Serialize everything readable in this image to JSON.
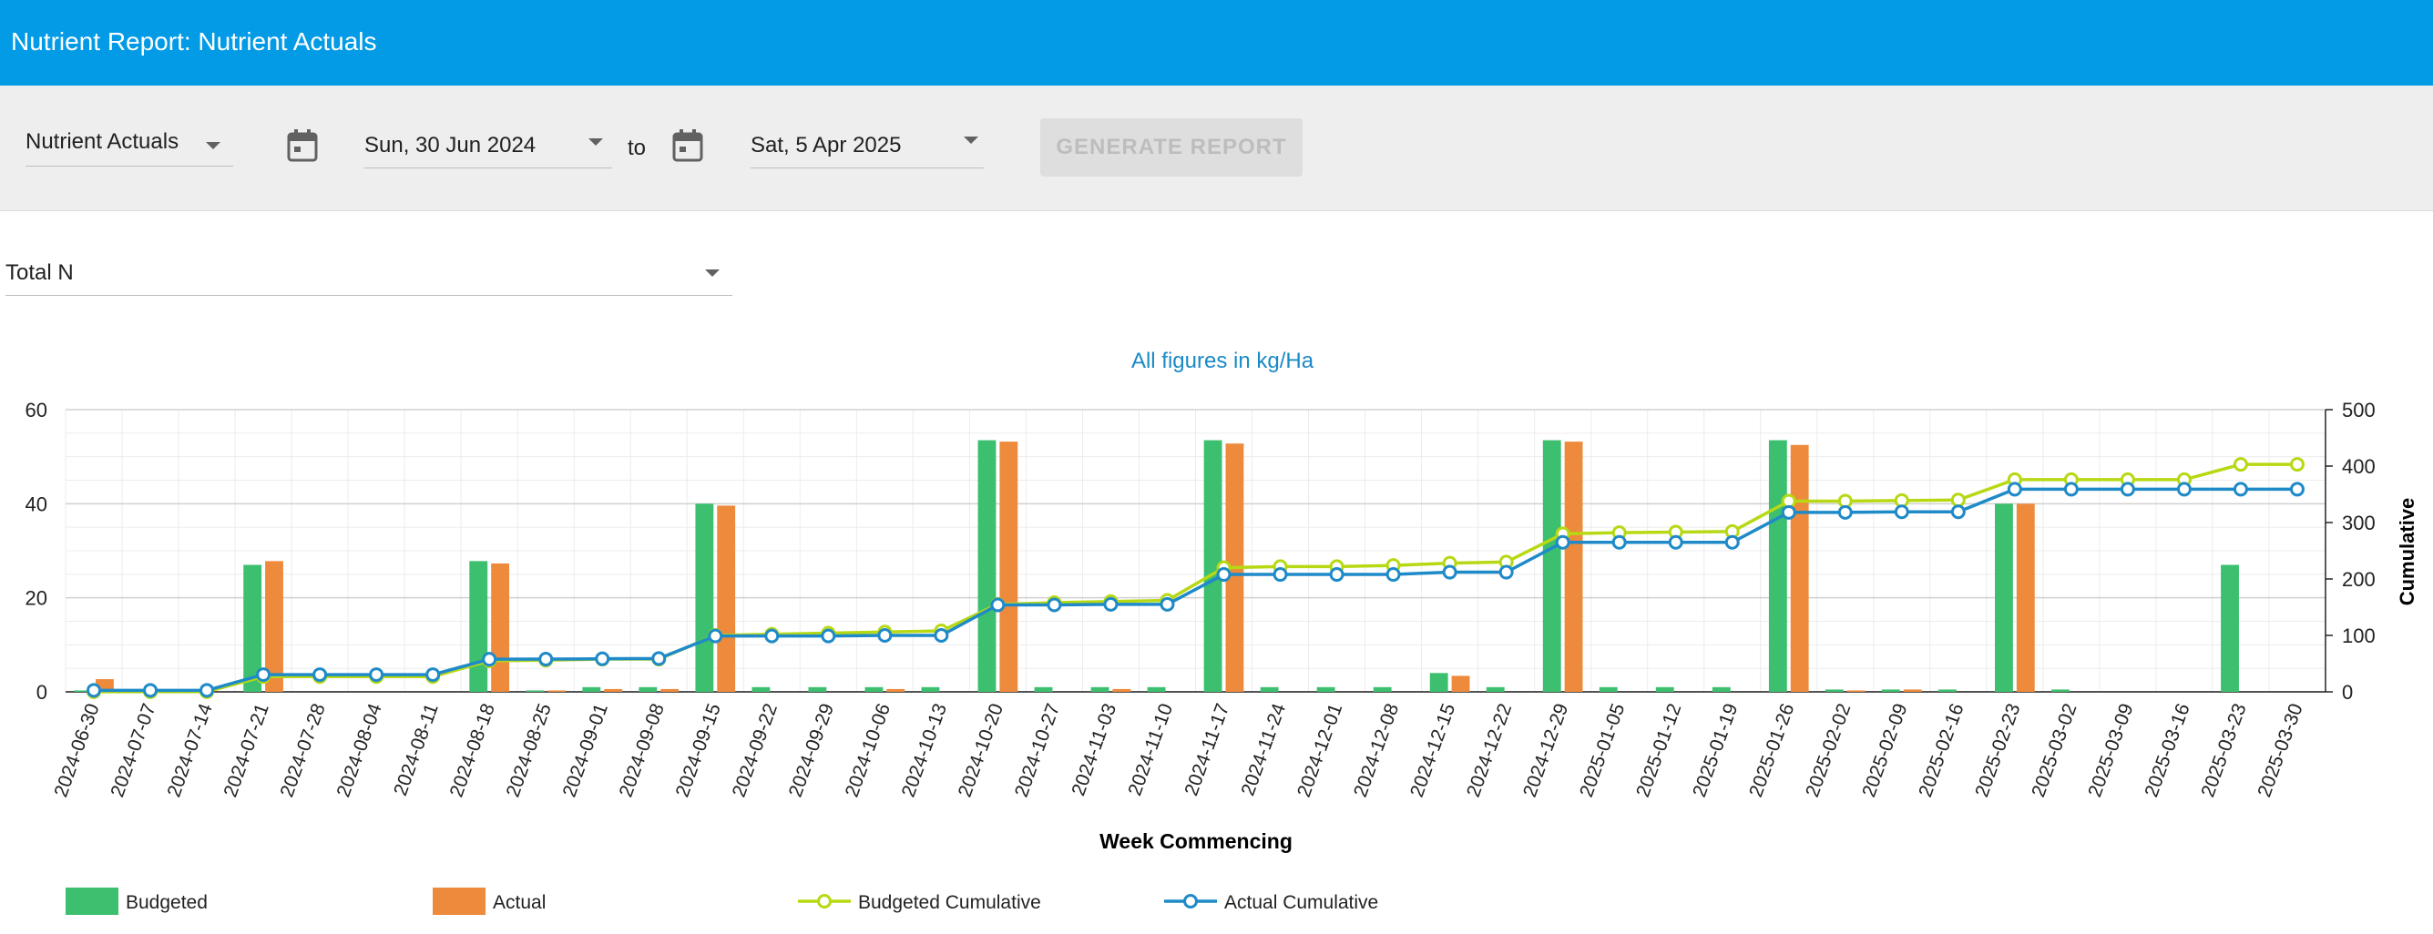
{
  "app": {
    "title": "Nutrient Report: Nutrient Actuals"
  },
  "toolbar": {
    "report_select": "Nutrient Actuals",
    "from_date": "Sun, 30 Jun 2024",
    "to_label": "to",
    "to_date": "Sat, 5 Apr 2025",
    "generate_label": "GENERATE REPORT"
  },
  "nutrient_select": {
    "value": "Total N"
  },
  "icons": {
    "calendar": "calendar-icon",
    "dropdown": "chevron-down-icon"
  },
  "colors": {
    "appbar": "#039be5",
    "budgeted": "#3cbf6e",
    "actual": "#ee8a3c",
    "budgeted_cumulative": "#b6d914",
    "actual_cumulative": "#1f8ac8",
    "note": "#1a8ac6"
  },
  "chart_data": {
    "type": "bar",
    "title": "All figures in kg/Ha",
    "xlabel": "Week Commencing",
    "ylabel": "",
    "y2label": "Cumulative",
    "ylim": [
      0,
      60
    ],
    "y_ticks": [
      0,
      20,
      40,
      60
    ],
    "y2lim": [
      0,
      500
    ],
    "y2_ticks": [
      0,
      100,
      200,
      300,
      400,
      500
    ],
    "grid": true,
    "legend_position": "bottom",
    "categories": [
      "2024-06-30",
      "2024-07-07",
      "2024-07-14",
      "2024-07-21",
      "2024-07-28",
      "2024-08-04",
      "2024-08-11",
      "2024-08-18",
      "2024-08-25",
      "2024-09-01",
      "2024-09-08",
      "2024-09-15",
      "2024-09-22",
      "2024-09-29",
      "2024-10-06",
      "2024-10-13",
      "2024-10-20",
      "2024-10-27",
      "2024-11-03",
      "2024-11-10",
      "2024-11-17",
      "2024-11-24",
      "2024-12-01",
      "2024-12-08",
      "2024-12-15",
      "2024-12-22",
      "2024-12-29",
      "2025-01-05",
      "2025-01-12",
      "2025-01-19",
      "2025-01-26",
      "2025-02-02",
      "2025-02-09",
      "2025-02-16",
      "2025-02-23",
      "2025-03-02",
      "2025-03-09",
      "2025-03-16",
      "2025-03-23",
      "2025-03-30"
    ],
    "series": [
      {
        "name": "Budgeted",
        "kind": "bar",
        "axis": "left",
        "values": [
          0.3,
          0,
          0,
          27,
          0,
          0,
          0,
          27.8,
          0.3,
          1,
          1,
          40,
          1,
          1,
          1,
          1,
          53.5,
          1,
          1,
          1,
          53.5,
          1,
          1,
          1,
          4,
          1,
          53.5,
          1,
          1,
          1,
          53.5,
          0.5,
          0.5,
          0.5,
          40,
          0.5,
          0,
          0,
          27,
          0
        ]
      },
      {
        "name": "Actual",
        "kind": "bar",
        "axis": "left",
        "values": [
          2.7,
          0,
          0,
          27.8,
          0,
          0,
          0,
          27.3,
          0.3,
          0.6,
          0.6,
          39.6,
          0,
          0,
          0.6,
          0,
          53.2,
          0,
          0.6,
          0,
          52.8,
          0,
          0,
          0,
          3.4,
          0,
          53.2,
          0,
          0,
          0,
          52.5,
          0.3,
          0.5,
          0,
          40,
          0,
          0,
          0,
          0,
          0
        ]
      },
      {
        "name": "Budgeted Cumulative",
        "kind": "line",
        "axis": "right",
        "values": [
          0.3,
          0.3,
          0.3,
          27,
          27,
          27,
          27,
          55,
          56,
          58,
          58,
          100,
          102,
          104,
          106,
          108,
          155,
          158,
          160,
          162,
          220,
          222,
          222,
          224,
          228,
          230,
          280,
          282,
          283,
          284,
          338,
          338,
          339,
          340,
          376,
          376,
          376,
          376,
          403,
          403
        ]
      },
      {
        "name": "Actual Cumulative",
        "kind": "line",
        "axis": "right",
        "values": [
          2.7,
          2.7,
          2.7,
          30.5,
          30.5,
          30.5,
          30.5,
          57.8,
          58,
          58.6,
          59,
          99,
          99,
          99,
          100,
          100,
          154,
          154,
          155,
          155,
          208,
          208,
          208,
          208,
          212,
          212,
          265,
          265,
          265,
          265,
          318,
          318,
          319,
          319,
          359,
          359,
          359,
          359,
          359,
          359
        ]
      }
    ]
  }
}
